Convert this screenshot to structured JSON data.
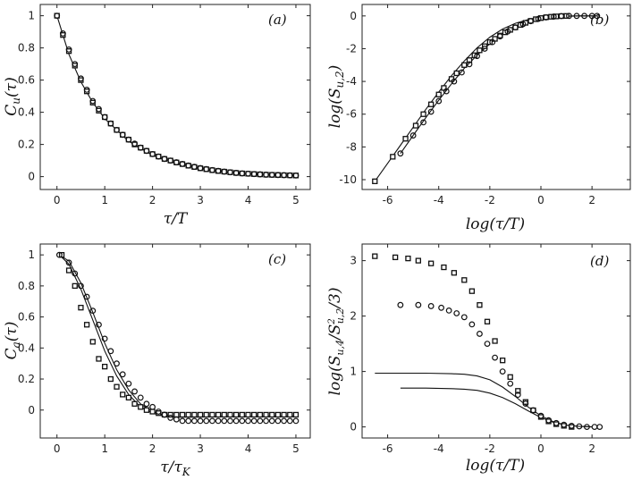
{
  "chart_data": [
    {
      "id": "a",
      "type": "scatter",
      "panel_label": "(a)",
      "xlabel": "τ/T",
      "ylabel": "C_u(τ)",
      "xlim": [
        -0.35,
        5.3
      ],
      "ylim": [
        -0.08,
        1.07
      ],
      "xticks": [
        0,
        1,
        2,
        3,
        4,
        5
      ],
      "xtick_labels": [
        "0",
        "1",
        "2",
        "3",
        "4",
        "5"
      ],
      "yticks": [
        0,
        0.2,
        0.4,
        0.6,
        0.8,
        1
      ],
      "ytick_labels": [
        "0",
        "0.2",
        "0.4",
        "0.6",
        "0.8",
        "1"
      ],
      "series": [
        {
          "name": "model curve",
          "kind": "line",
          "x": [
            0,
            0.25,
            0.5,
            0.75,
            1,
            1.5,
            2,
            2.5,
            3,
            3.5,
            4,
            4.5,
            5
          ],
          "y": [
            1,
            0.76,
            0.59,
            0.46,
            0.36,
            0.22,
            0.135,
            0.082,
            0.05,
            0.03,
            0.018,
            0.011,
            0.0067
          ]
        },
        {
          "name": "squares",
          "kind": "square",
          "x": [
            0,
            0.125,
            0.25,
            0.375,
            0.5,
            0.625,
            0.75,
            0.875,
            1,
            1.125,
            1.25,
            1.375,
            1.5,
            1.625,
            1.75,
            1.875,
            2,
            2.125,
            2.25,
            2.375,
            2.5,
            2.625,
            2.75,
            2.875,
            3,
            3.125,
            3.25,
            3.375,
            3.5,
            3.625,
            3.75,
            3.875,
            4,
            4.125,
            4.25,
            4.375,
            4.5,
            4.625,
            4.75,
            4.875,
            5
          ],
          "y": [
            1,
            0.88,
            0.78,
            0.69,
            0.6,
            0.53,
            0.46,
            0.41,
            0.37,
            0.33,
            0.29,
            0.26,
            0.23,
            0.2,
            0.18,
            0.16,
            0.14,
            0.125,
            0.11,
            0.1,
            0.088,
            0.078,
            0.068,
            0.06,
            0.052,
            0.046,
            0.04,
            0.035,
            0.031,
            0.027,
            0.023,
            0.02,
            0.018,
            0.016,
            0.014,
            0.012,
            0.011,
            0.01,
            0.009,
            0.008,
            0.007
          ]
        },
        {
          "name": "circles",
          "kind": "circle",
          "x": [
            0,
            0.125,
            0.25,
            0.375,
            0.5,
            0.625,
            0.75,
            0.875,
            1,
            1.125,
            1.25,
            1.375,
            1.5,
            1.625,
            1.75,
            1.875,
            2,
            2.125,
            2.25,
            2.375,
            2.5,
            2.625,
            2.75,
            2.875,
            3,
            3.125,
            3.25,
            3.375,
            3.5,
            3.625,
            3.75,
            3.875,
            4,
            4.125,
            4.25,
            4.375,
            4.5,
            4.625,
            4.75,
            4.875,
            5
          ],
          "y": [
            1,
            0.89,
            0.79,
            0.7,
            0.61,
            0.54,
            0.47,
            0.42,
            0.37,
            0.33,
            0.29,
            0.26,
            0.23,
            0.205,
            0.18,
            0.16,
            0.14,
            0.125,
            0.11,
            0.1,
            0.089,
            0.079,
            0.069,
            0.061,
            0.053,
            0.047,
            0.041,
            0.036,
            0.031,
            0.027,
            0.023,
            0.02,
            0.018,
            0.016,
            0.014,
            0.012,
            0.011,
            0.01,
            0.009,
            0.008,
            0.007
          ]
        }
      ]
    },
    {
      "id": "b",
      "type": "scatter",
      "panel_label": "(b)",
      "xlabel": "log(τ/T)",
      "ylabel": "log(S_u,2)",
      "xlim": [
        -7.0,
        3.5
      ],
      "ylim": [
        -10.6,
        0.7
      ],
      "xticks": [
        -6,
        -4,
        -2,
        0,
        2
      ],
      "xtick_labels": [
        "-6",
        "-4",
        "-2",
        "0",
        "2"
      ],
      "yticks": [
        -10,
        -8,
        -6,
        -4,
        -2,
        0
      ],
      "ytick_labels": [
        "-10",
        "-8",
        "-6",
        "-4",
        "-2",
        "0"
      ],
      "series": [
        {
          "name": "curve squares",
          "kind": "line",
          "x": [
            -6.5,
            -6.0,
            -5.5,
            -5.0,
            -4.5,
            -4.0,
            -3.5,
            -3.0,
            -2.5,
            -2.0,
            -1.5,
            -1.0,
            -0.5,
            0.0,
            0.5,
            1.0,
            1.5,
            2.0,
            2.2
          ],
          "y": [
            -10.1,
            -9.0,
            -7.9,
            -6.8,
            -5.7,
            -4.65,
            -3.65,
            -2.75,
            -1.95,
            -1.3,
            -0.8,
            -0.45,
            -0.22,
            -0.09,
            -0.03,
            -0.01,
            0,
            0,
            0
          ]
        },
        {
          "name": "curve circles",
          "kind": "line",
          "x": [
            -5.5,
            -5.0,
            -4.5,
            -4.0,
            -3.5,
            -3.0,
            -2.5,
            -2.0,
            -1.5,
            -1.0,
            -0.5,
            0.0,
            0.5,
            1.0,
            1.5,
            2.0,
            2.2
          ],
          "y": [
            -8.4,
            -7.3,
            -6.2,
            -5.15,
            -4.15,
            -3.2,
            -2.4,
            -1.7,
            -1.1,
            -0.65,
            -0.32,
            -0.13,
            -0.05,
            -0.02,
            0,
            0,
            0
          ]
        },
        {
          "name": "squares",
          "kind": "square",
          "x": [
            -6.5,
            -5.8,
            -5.3,
            -4.9,
            -4.6,
            -4.3,
            -4.0,
            -3.8,
            -3.5,
            -3.3,
            -3.0,
            -2.8,
            -2.6,
            -2.4,
            -2.2,
            -2.0,
            -1.8,
            -1.6,
            -1.4,
            -1.2,
            -1.0,
            -0.8,
            -0.6,
            -0.4,
            -0.2,
            0.0,
            0.2,
            0.4,
            0.6,
            0.8,
            1.0
          ],
          "y": [
            -10.1,
            -8.6,
            -7.5,
            -6.7,
            -6.0,
            -5.4,
            -4.8,
            -4.4,
            -3.85,
            -3.5,
            -3.0,
            -2.7,
            -2.4,
            -2.1,
            -1.85,
            -1.6,
            -1.4,
            -1.2,
            -1.0,
            -0.85,
            -0.7,
            -0.55,
            -0.42,
            -0.3,
            -0.2,
            -0.13,
            -0.08,
            -0.05,
            -0.03,
            -0.01,
            0
          ]
        },
        {
          "name": "circles",
          "kind": "circle",
          "x": [
            -5.5,
            -5.0,
            -4.6,
            -4.3,
            -4.0,
            -3.7,
            -3.4,
            -3.1,
            -2.8,
            -2.5,
            -2.2,
            -1.9,
            -1.6,
            -1.3,
            -1.0,
            -0.7,
            -0.4,
            -0.1,
            0.2,
            0.5,
            0.8,
            1.1,
            1.4,
            1.7,
            2.0,
            2.2
          ],
          "y": [
            -8.4,
            -7.3,
            -6.5,
            -5.85,
            -5.2,
            -4.6,
            -4.0,
            -3.45,
            -2.95,
            -2.45,
            -2.0,
            -1.6,
            -1.25,
            -0.95,
            -0.7,
            -0.5,
            -0.32,
            -0.18,
            -0.09,
            -0.04,
            -0.01,
            0,
            0,
            0,
            0,
            0
          ]
        }
      ]
    },
    {
      "id": "c",
      "type": "scatter",
      "panel_label": "(c)",
      "xlabel": "τ/τ_K",
      "ylabel": "C_a(τ)",
      "xlim": [
        -0.35,
        5.3
      ],
      "ylim": [
        -0.18,
        1.07
      ],
      "xticks": [
        0,
        1,
        2,
        3,
        4,
        5
      ],
      "xtick_labels": [
        "0",
        "1",
        "2",
        "3",
        "4",
        "5"
      ],
      "yticks": [
        0,
        0.2,
        0.4,
        0.6,
        0.8,
        1
      ],
      "ytick_labels": [
        "0",
        "0.2",
        "0.4",
        "0.6",
        "0.8",
        "1"
      ],
      "series": [
        {
          "name": "curve 1",
          "kind": "line",
          "x": [
            0.05,
            0.25,
            0.5,
            0.75,
            1.0,
            1.25,
            1.5,
            1.75,
            2.0,
            2.25,
            2.5,
            3.0,
            3.5,
            4.0,
            4.5,
            5.0
          ],
          "y": [
            1,
            0.94,
            0.78,
            0.58,
            0.38,
            0.22,
            0.1,
            0.02,
            -0.02,
            -0.04,
            -0.045,
            -0.045,
            -0.04,
            -0.04,
            -0.04,
            -0.04
          ]
        },
        {
          "name": "curve 2",
          "kind": "line",
          "x": [
            0.05,
            0.25,
            0.5,
            0.75,
            1.0,
            1.25,
            1.5,
            1.75,
            2.0,
            2.25,
            2.5,
            3.0,
            3.5,
            4.0,
            4.5,
            5.0
          ],
          "y": [
            1,
            0.96,
            0.82,
            0.63,
            0.43,
            0.26,
            0.13,
            0.04,
            -0.01,
            -0.035,
            -0.045,
            -0.045,
            -0.04,
            -0.04,
            -0.04,
            -0.04
          ]
        },
        {
          "name": "squares",
          "kind": "square",
          "x": [
            0.1,
            0.25,
            0.375,
            0.5,
            0.625,
            0.75,
            0.875,
            1.0,
            1.125,
            1.25,
            1.375,
            1.5,
            1.625,
            1.75,
            1.875,
            2.0,
            2.125,
            2.25,
            2.375,
            2.5,
            2.625,
            2.75,
            2.875,
            3.0,
            3.125,
            3.25,
            3.375,
            3.5,
            3.625,
            3.75,
            3.875,
            4.0,
            4.125,
            4.25,
            4.375,
            4.5,
            4.625,
            4.75,
            4.875,
            5.0
          ],
          "y": [
            1,
            0.9,
            0.8,
            0.66,
            0.55,
            0.44,
            0.33,
            0.28,
            0.2,
            0.15,
            0.1,
            0.08,
            0.04,
            0.02,
            0.0,
            -0.01,
            -0.02,
            -0.03,
            -0.03,
            -0.03,
            -0.03,
            -0.03,
            -0.03,
            -0.03,
            -0.03,
            -0.03,
            -0.03,
            -0.03,
            -0.03,
            -0.03,
            -0.03,
            -0.03,
            -0.03,
            -0.03,
            -0.03,
            -0.03,
            -0.03,
            -0.03,
            -0.03,
            -0.03
          ]
        },
        {
          "name": "circles",
          "kind": "circle",
          "x": [
            0.05,
            0.25,
            0.375,
            0.5,
            0.625,
            0.75,
            0.875,
            1.0,
            1.125,
            1.25,
            1.375,
            1.5,
            1.625,
            1.75,
            1.875,
            2.0,
            2.125,
            2.25,
            2.375,
            2.5,
            2.625,
            2.75,
            2.875,
            3.0,
            3.125,
            3.25,
            3.375,
            3.5,
            3.625,
            3.75,
            3.875,
            4.0,
            4.125,
            4.25,
            4.375,
            4.5,
            4.625,
            4.75,
            4.875,
            5.0
          ],
          "y": [
            1,
            0.95,
            0.88,
            0.8,
            0.73,
            0.64,
            0.55,
            0.46,
            0.38,
            0.3,
            0.23,
            0.17,
            0.12,
            0.08,
            0.04,
            0.02,
            -0.01,
            -0.03,
            -0.05,
            -0.06,
            -0.07,
            -0.07,
            -0.07,
            -0.07,
            -0.07,
            -0.07,
            -0.07,
            -0.07,
            -0.07,
            -0.07,
            -0.07,
            -0.07,
            -0.07,
            -0.07,
            -0.07,
            -0.07,
            -0.07,
            -0.07,
            -0.07,
            -0.07
          ]
        }
      ]
    },
    {
      "id": "d",
      "type": "scatter",
      "panel_label": "(d)",
      "xlabel": "log(τ/T)",
      "ylabel": "log(S_u,4 / S²_u,2 / 3)",
      "xlim": [
        -7.0,
        3.5
      ],
      "ylim": [
        -0.2,
        3.3
      ],
      "xticks": [
        -6,
        -4,
        -2,
        0,
        2
      ],
      "xtick_labels": [
        "-6",
        "-4",
        "-2",
        "0",
        "2"
      ],
      "yticks": [
        0,
        1,
        2,
        3
      ],
      "ytick_labels": [
        "0",
        "1",
        "2",
        "3"
      ],
      "series": [
        {
          "name": "curve upper",
          "kind": "line",
          "x": [
            -6.5,
            -5.5,
            -4.5,
            -3.5,
            -3.0,
            -2.5,
            -2.0,
            -1.5,
            -1.0,
            -0.5,
            0.0,
            0.5,
            1.0,
            1.5,
            2.0
          ],
          "y": [
            0.97,
            0.97,
            0.97,
            0.96,
            0.95,
            0.92,
            0.85,
            0.72,
            0.55,
            0.36,
            0.2,
            0.09,
            0.03,
            0.01,
            0.0
          ]
        },
        {
          "name": "curve lower",
          "kind": "line",
          "x": [
            -5.5,
            -4.5,
            -3.5,
            -3.0,
            -2.5,
            -2.0,
            -1.5,
            -1.0,
            -0.5,
            0.0,
            0.5,
            1.0,
            1.5,
            2.0
          ],
          "y": [
            0.7,
            0.7,
            0.69,
            0.68,
            0.66,
            0.61,
            0.53,
            0.42,
            0.29,
            0.17,
            0.08,
            0.03,
            0.01,
            0.0
          ]
        },
        {
          "name": "squares",
          "kind": "square",
          "x": [
            -6.5,
            -5.7,
            -5.2,
            -4.8,
            -4.3,
            -3.8,
            -3.4,
            -3.0,
            -2.7,
            -2.4,
            -2.1,
            -1.8,
            -1.5,
            -1.2,
            -0.9,
            -0.6,
            -0.3,
            0.0,
            0.3,
            0.6,
            0.9,
            1.2
          ],
          "y": [
            3.08,
            3.06,
            3.04,
            3.0,
            2.95,
            2.88,
            2.78,
            2.65,
            2.45,
            2.2,
            1.9,
            1.55,
            1.2,
            0.9,
            0.65,
            0.45,
            0.3,
            0.18,
            0.1,
            0.05,
            0.02,
            0.0
          ]
        },
        {
          "name": "circles",
          "kind": "circle",
          "x": [
            -5.5,
            -4.8,
            -4.3,
            -3.9,
            -3.6,
            -3.3,
            -3.0,
            -2.7,
            -2.4,
            -2.1,
            -1.8,
            -1.5,
            -1.2,
            -0.9,
            -0.6,
            -0.3,
            0.0,
            0.3,
            0.6,
            0.9,
            1.2,
            1.5,
            1.8,
            2.1,
            2.3
          ],
          "y": [
            2.2,
            2.2,
            2.18,
            2.15,
            2.1,
            2.05,
            1.98,
            1.85,
            1.68,
            1.5,
            1.25,
            1.0,
            0.78,
            0.58,
            0.42,
            0.3,
            0.2,
            0.12,
            0.07,
            0.04,
            0.02,
            0.01,
            0.0,
            0.0,
            0.0
          ]
        }
      ]
    }
  ]
}
